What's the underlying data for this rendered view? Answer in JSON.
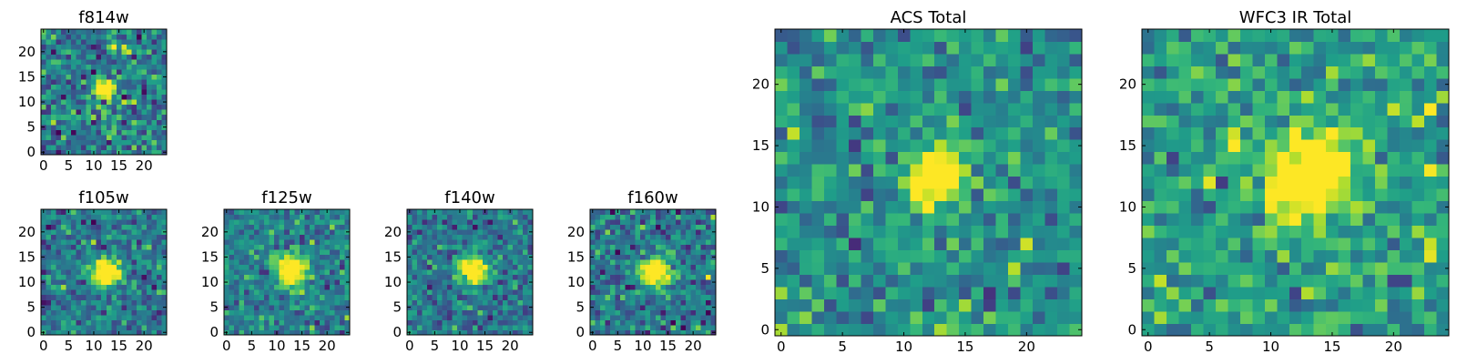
{
  "colormap": "viridis",
  "colors": {
    "viridis": [
      "#440154",
      "#482878",
      "#3e4989",
      "#31688e",
      "#26828e",
      "#1f9e89",
      "#35b779",
      "#6ece58",
      "#b5de2b",
      "#fde725"
    ]
  },
  "chart_data": [
    {
      "type": "heatmap",
      "title": "f814w",
      "size": 25,
      "xlim": [
        0,
        24
      ],
      "ylim": [
        0,
        24
      ],
      "xticks": [
        0,
        5,
        10,
        15,
        20
      ],
      "yticks": [
        0,
        5,
        10,
        15,
        20
      ],
      "source": {
        "center": [
          12,
          12.5
        ],
        "peak": 1.0,
        "sigma": 1.3
      },
      "background": 0.42,
      "noise": 0.17,
      "seed": 11
    },
    {
      "type": "heatmap",
      "title": "f105w",
      "size": 25,
      "xlim": [
        0,
        24
      ],
      "ylim": [
        0,
        24
      ],
      "xticks": [
        0,
        5,
        10,
        15,
        20
      ],
      "yticks": [
        0,
        5,
        10,
        15,
        20
      ],
      "source": {
        "center": [
          12.5,
          12
        ],
        "peak": 1.0,
        "sigma": 1.8
      },
      "background": 0.4,
      "noise": 0.14,
      "seed": 23
    },
    {
      "type": "heatmap",
      "title": "f125w",
      "size": 25,
      "xlim": [
        0,
        24
      ],
      "ylim": [
        0,
        24
      ],
      "xticks": [
        0,
        5,
        10,
        15,
        20
      ],
      "yticks": [
        0,
        5,
        10,
        15,
        20
      ],
      "source": {
        "center": [
          13,
          12.5
        ],
        "peak": 0.95,
        "sigma": 2.0
      },
      "background": 0.45,
      "noise": 0.13,
      "seed": 37
    },
    {
      "type": "heatmap",
      "title": "f140w",
      "size": 25,
      "xlim": [
        0,
        24
      ],
      "ylim": [
        0,
        24
      ],
      "xticks": [
        0,
        5,
        10,
        15,
        20
      ],
      "yticks": [
        0,
        5,
        10,
        15,
        20
      ],
      "source": {
        "center": [
          12.5,
          12.5
        ],
        "peak": 0.95,
        "sigma": 2.0
      },
      "background": 0.38,
      "noise": 0.13,
      "seed": 51
    },
    {
      "type": "heatmap",
      "title": "f160w",
      "size": 25,
      "xlim": [
        0,
        24
      ],
      "ylim": [
        0,
        24
      ],
      "xticks": [
        0,
        5,
        10,
        15,
        20
      ],
      "yticks": [
        0,
        5,
        10,
        15,
        20
      ],
      "source": {
        "center": [
          12.5,
          12
        ],
        "peak": 0.95,
        "sigma": 2.1
      },
      "background": 0.4,
      "noise": 0.15,
      "seed": 67
    },
    {
      "type": "heatmap",
      "title": "ACS Total",
      "size": 25,
      "xlim": [
        0,
        24
      ],
      "ylim": [
        0,
        24
      ],
      "xticks": [
        0,
        5,
        10,
        15,
        20
      ],
      "yticks": [
        0,
        5,
        10,
        15,
        20
      ],
      "source": {
        "center": [
          12.5,
          12.5
        ],
        "peak": 1.0,
        "sigma": 1.6
      },
      "background": 0.5,
      "noise": 0.14,
      "seed": 79
    },
    {
      "type": "heatmap",
      "title": "WFC3 IR Total",
      "size": 25,
      "xlim": [
        0,
        24
      ],
      "ylim": [
        0,
        24
      ],
      "xticks": [
        0,
        5,
        10,
        15,
        20
      ],
      "yticks": [
        0,
        5,
        10,
        15,
        20
      ],
      "source": {
        "center": [
          13,
          12.5
        ],
        "peak": 0.95,
        "sigma": 2.4
      },
      "background": 0.55,
      "noise": 0.15,
      "seed": 97
    }
  ]
}
